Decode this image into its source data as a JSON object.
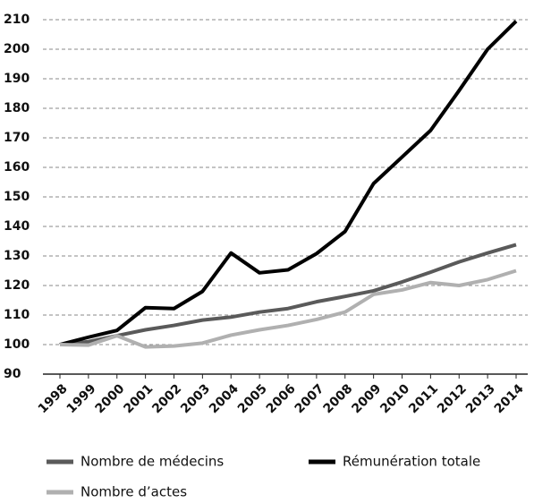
{
  "chart_data": {
    "type": "line",
    "categories": [
      "1998",
      "1999",
      "2000",
      "2001",
      "2002",
      "2003",
      "2004",
      "2005",
      "2006",
      "2007",
      "2008",
      "2009",
      "2010",
      "2011",
      "2012",
      "2013",
      "2014"
    ],
    "series": [
      {
        "name": "Nombre de médecins",
        "color": "#5a5a5a",
        "values": [
          100,
          101,
          103,
          105,
          106.5,
          108.3,
          109.3,
          111,
          112.2,
          114.5,
          116.3,
          118.2,
          121.2,
          124.5,
          128,
          131,
          133.8
        ]
      },
      {
        "name": "Rémunération totale",
        "color": "#000000",
        "values": [
          100,
          102.5,
          104.8,
          112.5,
          112.2,
          118,
          131,
          124.3,
          125.3,
          130.8,
          138.3,
          154.5,
          163.5,
          172.5,
          186,
          200,
          209.5
        ]
      },
      {
        "name": "Nombre d’actes",
        "color": "#b0b0b0",
        "values": [
          100,
          99.8,
          103,
          99.2,
          99.5,
          100.5,
          103.2,
          105,
          106.5,
          108.5,
          111,
          117,
          118.5,
          121,
          120,
          122,
          125
        ]
      }
    ],
    "ylim": [
      90,
      210
    ],
    "yticks": [
      90,
      100,
      110,
      120,
      130,
      140,
      150,
      160,
      170,
      180,
      190,
      200,
      210
    ],
    "grid": true
  }
}
